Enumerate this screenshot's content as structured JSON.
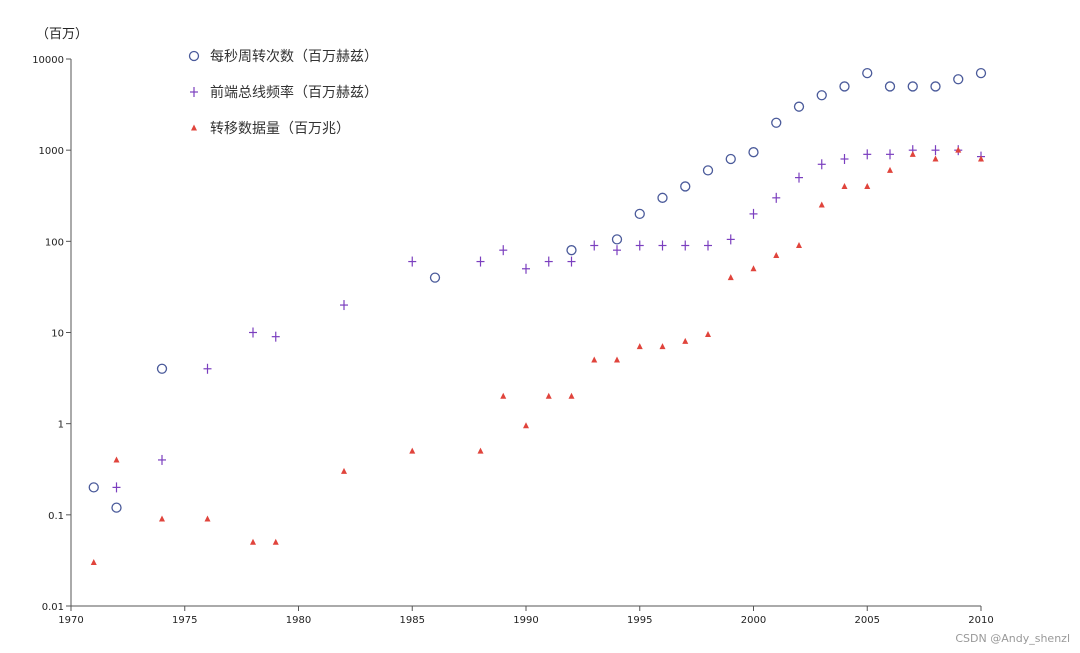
{
  "chart_data": {
    "type": "scatter",
    "title": "",
    "xlabel": "",
    "ylabel": "（百万）",
    "yscale": "log",
    "xlim": [
      1970,
      2010
    ],
    "ylim": [
      0.01,
      10000
    ],
    "x_ticks": [
      "1970",
      "1975",
      "1980",
      "1985",
      "1990",
      "1995",
      "2000",
      "2005",
      "2010"
    ],
    "y_ticks": [
      "0.01",
      "0.1",
      "1",
      "10",
      "100",
      "1000",
      "10000"
    ],
    "grid": false,
    "legend_position": "top-left",
    "series": [
      {
        "name": "每秒周转次数（百万赫兹）",
        "marker": "circle",
        "color": "#4a5a9a",
        "points": [
          [
            1971,
            0.2
          ],
          [
            1972,
            0.12
          ],
          [
            1974,
            4
          ],
          [
            1986,
            40
          ],
          [
            1992,
            80
          ],
          [
            1994,
            105
          ],
          [
            1995,
            200
          ],
          [
            1996,
            300
          ],
          [
            1997,
            400
          ],
          [
            1998,
            600
          ],
          [
            1999,
            800
          ],
          [
            2000,
            950
          ],
          [
            2001,
            2000
          ],
          [
            2002,
            3000
          ],
          [
            2003,
            4000
          ],
          [
            2004,
            5000
          ],
          [
            2005,
            7000
          ],
          [
            2006,
            5000
          ],
          [
            2007,
            5000
          ],
          [
            2008,
            5000
          ],
          [
            2009,
            6000
          ],
          [
            2010,
            7000
          ]
        ]
      },
      {
        "name": "前端总线频率（百万赫兹）",
        "marker": "plus",
        "color": "#7b3fbf",
        "points": [
          [
            1972,
            0.2
          ],
          [
            1974,
            0.4
          ],
          [
            1976,
            4
          ],
          [
            1978,
            10
          ],
          [
            1979,
            9
          ],
          [
            1982,
            20
          ],
          [
            1985,
            60
          ],
          [
            1988,
            60
          ],
          [
            1989,
            80
          ],
          [
            1990,
            50
          ],
          [
            1991,
            60
          ],
          [
            1992,
            60
          ],
          [
            1993,
            90
          ],
          [
            1994,
            80
          ],
          [
            1995,
            90
          ],
          [
            1996,
            90
          ],
          [
            1997,
            90
          ],
          [
            1998,
            90
          ],
          [
            1999,
            105
          ],
          [
            2000,
            200
          ],
          [
            2001,
            300
          ],
          [
            2002,
            500
          ],
          [
            2003,
            700
          ],
          [
            2004,
            800
          ],
          [
            2005,
            900
          ],
          [
            2006,
            900
          ],
          [
            2007,
            1000
          ],
          [
            2008,
            1000
          ],
          [
            2009,
            1000
          ],
          [
            2010,
            850
          ]
        ]
      },
      {
        "name": "转移数据量（百万兆）",
        "marker": "triangle",
        "color": "#e0443c",
        "points": [
          [
            1971,
            0.03
          ],
          [
            1972,
            0.4
          ],
          [
            1974,
            0.09
          ],
          [
            1976,
            0.09
          ],
          [
            1978,
            0.05
          ],
          [
            1979,
            0.05
          ],
          [
            1982,
            0.3
          ],
          [
            1985,
            0.5
          ],
          [
            1988,
            0.5
          ],
          [
            1989,
            2
          ],
          [
            1990,
            0.95
          ],
          [
            1991,
            2
          ],
          [
            1992,
            2
          ],
          [
            1993,
            5
          ],
          [
            1994,
            5
          ],
          [
            1995,
            7
          ],
          [
            1996,
            7
          ],
          [
            1997,
            8
          ],
          [
            1998,
            9.5
          ],
          [
            1999,
            40
          ],
          [
            2000,
            50
          ],
          [
            2001,
            70
          ],
          [
            2002,
            90
          ],
          [
            2003,
            250
          ],
          [
            2004,
            400
          ],
          [
            2005,
            400
          ],
          [
            2006,
            600
          ],
          [
            2007,
            900
          ],
          [
            2008,
            800
          ],
          [
            2009,
            1000
          ],
          [
            2010,
            800
          ]
        ]
      }
    ]
  },
  "watermark": "CSDN @Andy_shenzl"
}
